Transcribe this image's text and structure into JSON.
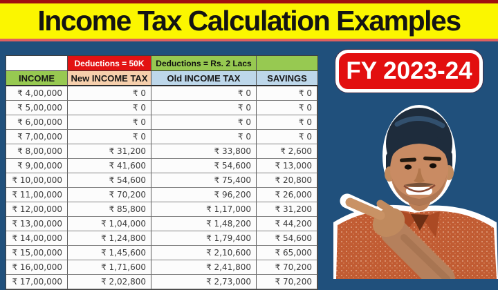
{
  "banner": {
    "title": "Income Tax Calculation Examples"
  },
  "badge": {
    "label": "FY 2023-24"
  },
  "table": {
    "group_headers": [
      "",
      "Deductions = 50K",
      "Deductions = Rs. 2 Lacs",
      ""
    ],
    "columns": [
      "INCOME",
      "New INCOME TAX",
      "Old INCOME TAX",
      "SAVINGS"
    ],
    "rows": [
      [
        "₹ 4,00,000",
        "₹ 0",
        "₹ 0",
        "₹ 0"
      ],
      [
        "₹ 5,00,000",
        "₹ 0",
        "₹ 0",
        "₹ 0"
      ],
      [
        "₹ 6,00,000",
        "₹ 0",
        "₹ 0",
        "₹ 0"
      ],
      [
        "₹ 7,00,000",
        "₹ 0",
        "₹ 0",
        "₹ 0"
      ],
      [
        "₹ 8,00,000",
        "₹ 31,200",
        "₹ 33,800",
        "₹ 2,600"
      ],
      [
        "₹ 9,00,000",
        "₹ 41,600",
        "₹ 54,600",
        "₹ 13,000"
      ],
      [
        "₹ 10,00,000",
        "₹ 54,600",
        "₹ 75,400",
        "₹ 20,800"
      ],
      [
        "₹ 11,00,000",
        "₹ 70,200",
        "₹ 96,200",
        "₹ 26,000"
      ],
      [
        "₹ 12,00,000",
        "₹ 85,800",
        "₹ 1,17,000",
        "₹ 31,200"
      ],
      [
        "₹ 13,00,000",
        "₹ 1,04,000",
        "₹ 1,48,200",
        "₹ 44,200"
      ],
      [
        "₹ 14,00,000",
        "₹ 1,24,800",
        "₹ 1,79,400",
        "₹ 54,600"
      ],
      [
        "₹ 15,00,000",
        "₹ 1,45,600",
        "₹ 2,10,600",
        "₹ 65,000"
      ],
      [
        "₹ 16,00,000",
        "₹ 1,71,600",
        "₹ 2,41,800",
        "₹ 70,200"
      ],
      [
        "₹ 17,00,000",
        "₹ 2,02,800",
        "₹ 2,73,000",
        "₹ 70,200"
      ]
    ]
  },
  "colors": {
    "background_navy": "#20507C",
    "banner_yellow": "#FBF600",
    "banner_top_strip": "#A01010",
    "banner_bottom_strip": "#E06060",
    "header_red": "#E31212",
    "header_green": "#97C951",
    "header_peach": "#F6CFAC",
    "header_blue": "#BDD7EA",
    "badge_red": "#E20F0F"
  }
}
